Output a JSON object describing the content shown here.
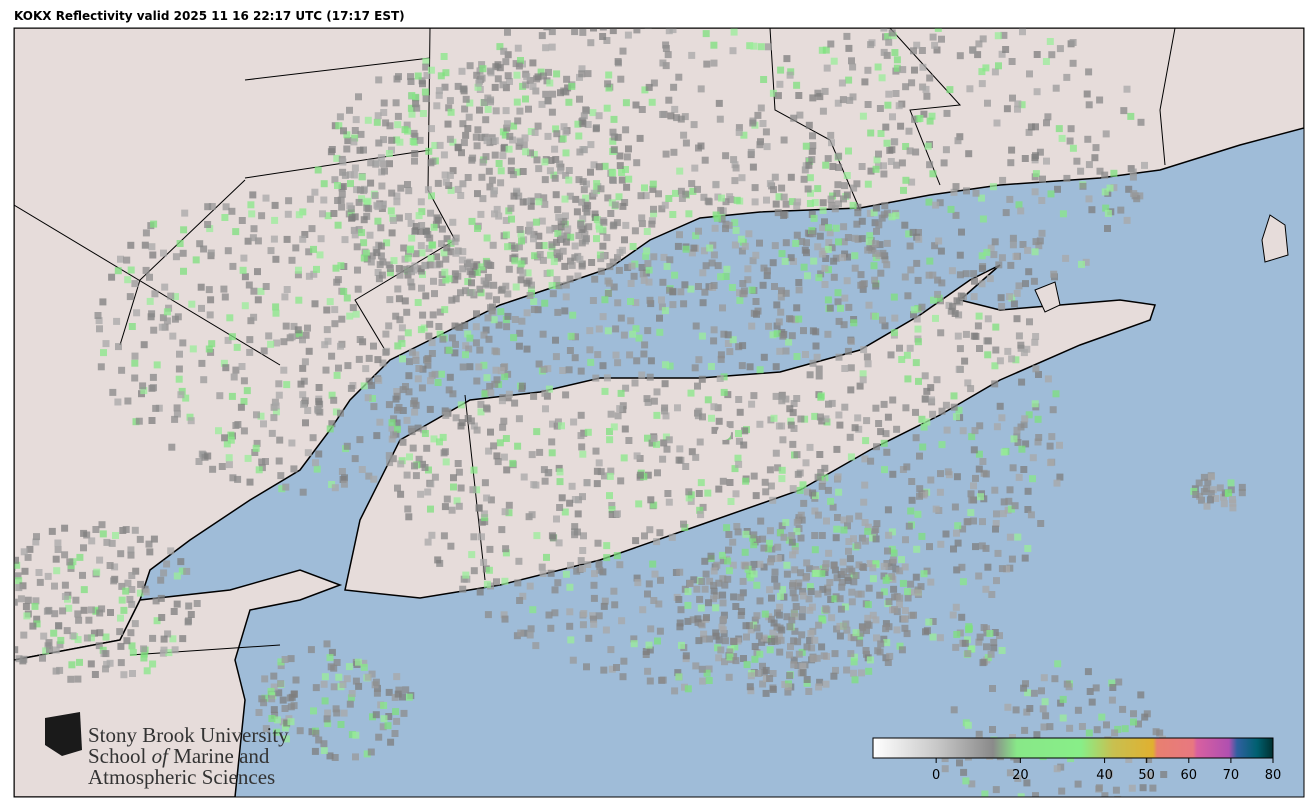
{
  "title": "KOKX Reflectivity valid 2025 11 16 22:17 UTC (17:17 EST)",
  "colorbar": {
    "lim": [
      -15,
      80
    ],
    "ticks": [
      0,
      20,
      40,
      50,
      60,
      70,
      80
    ]
  },
  "logo": {
    "line1": "Stony Brook University",
    "line2": [
      "School",
      "of",
      "Marine and"
    ],
    "line3": "Atmospheric Sciences"
  }
}
